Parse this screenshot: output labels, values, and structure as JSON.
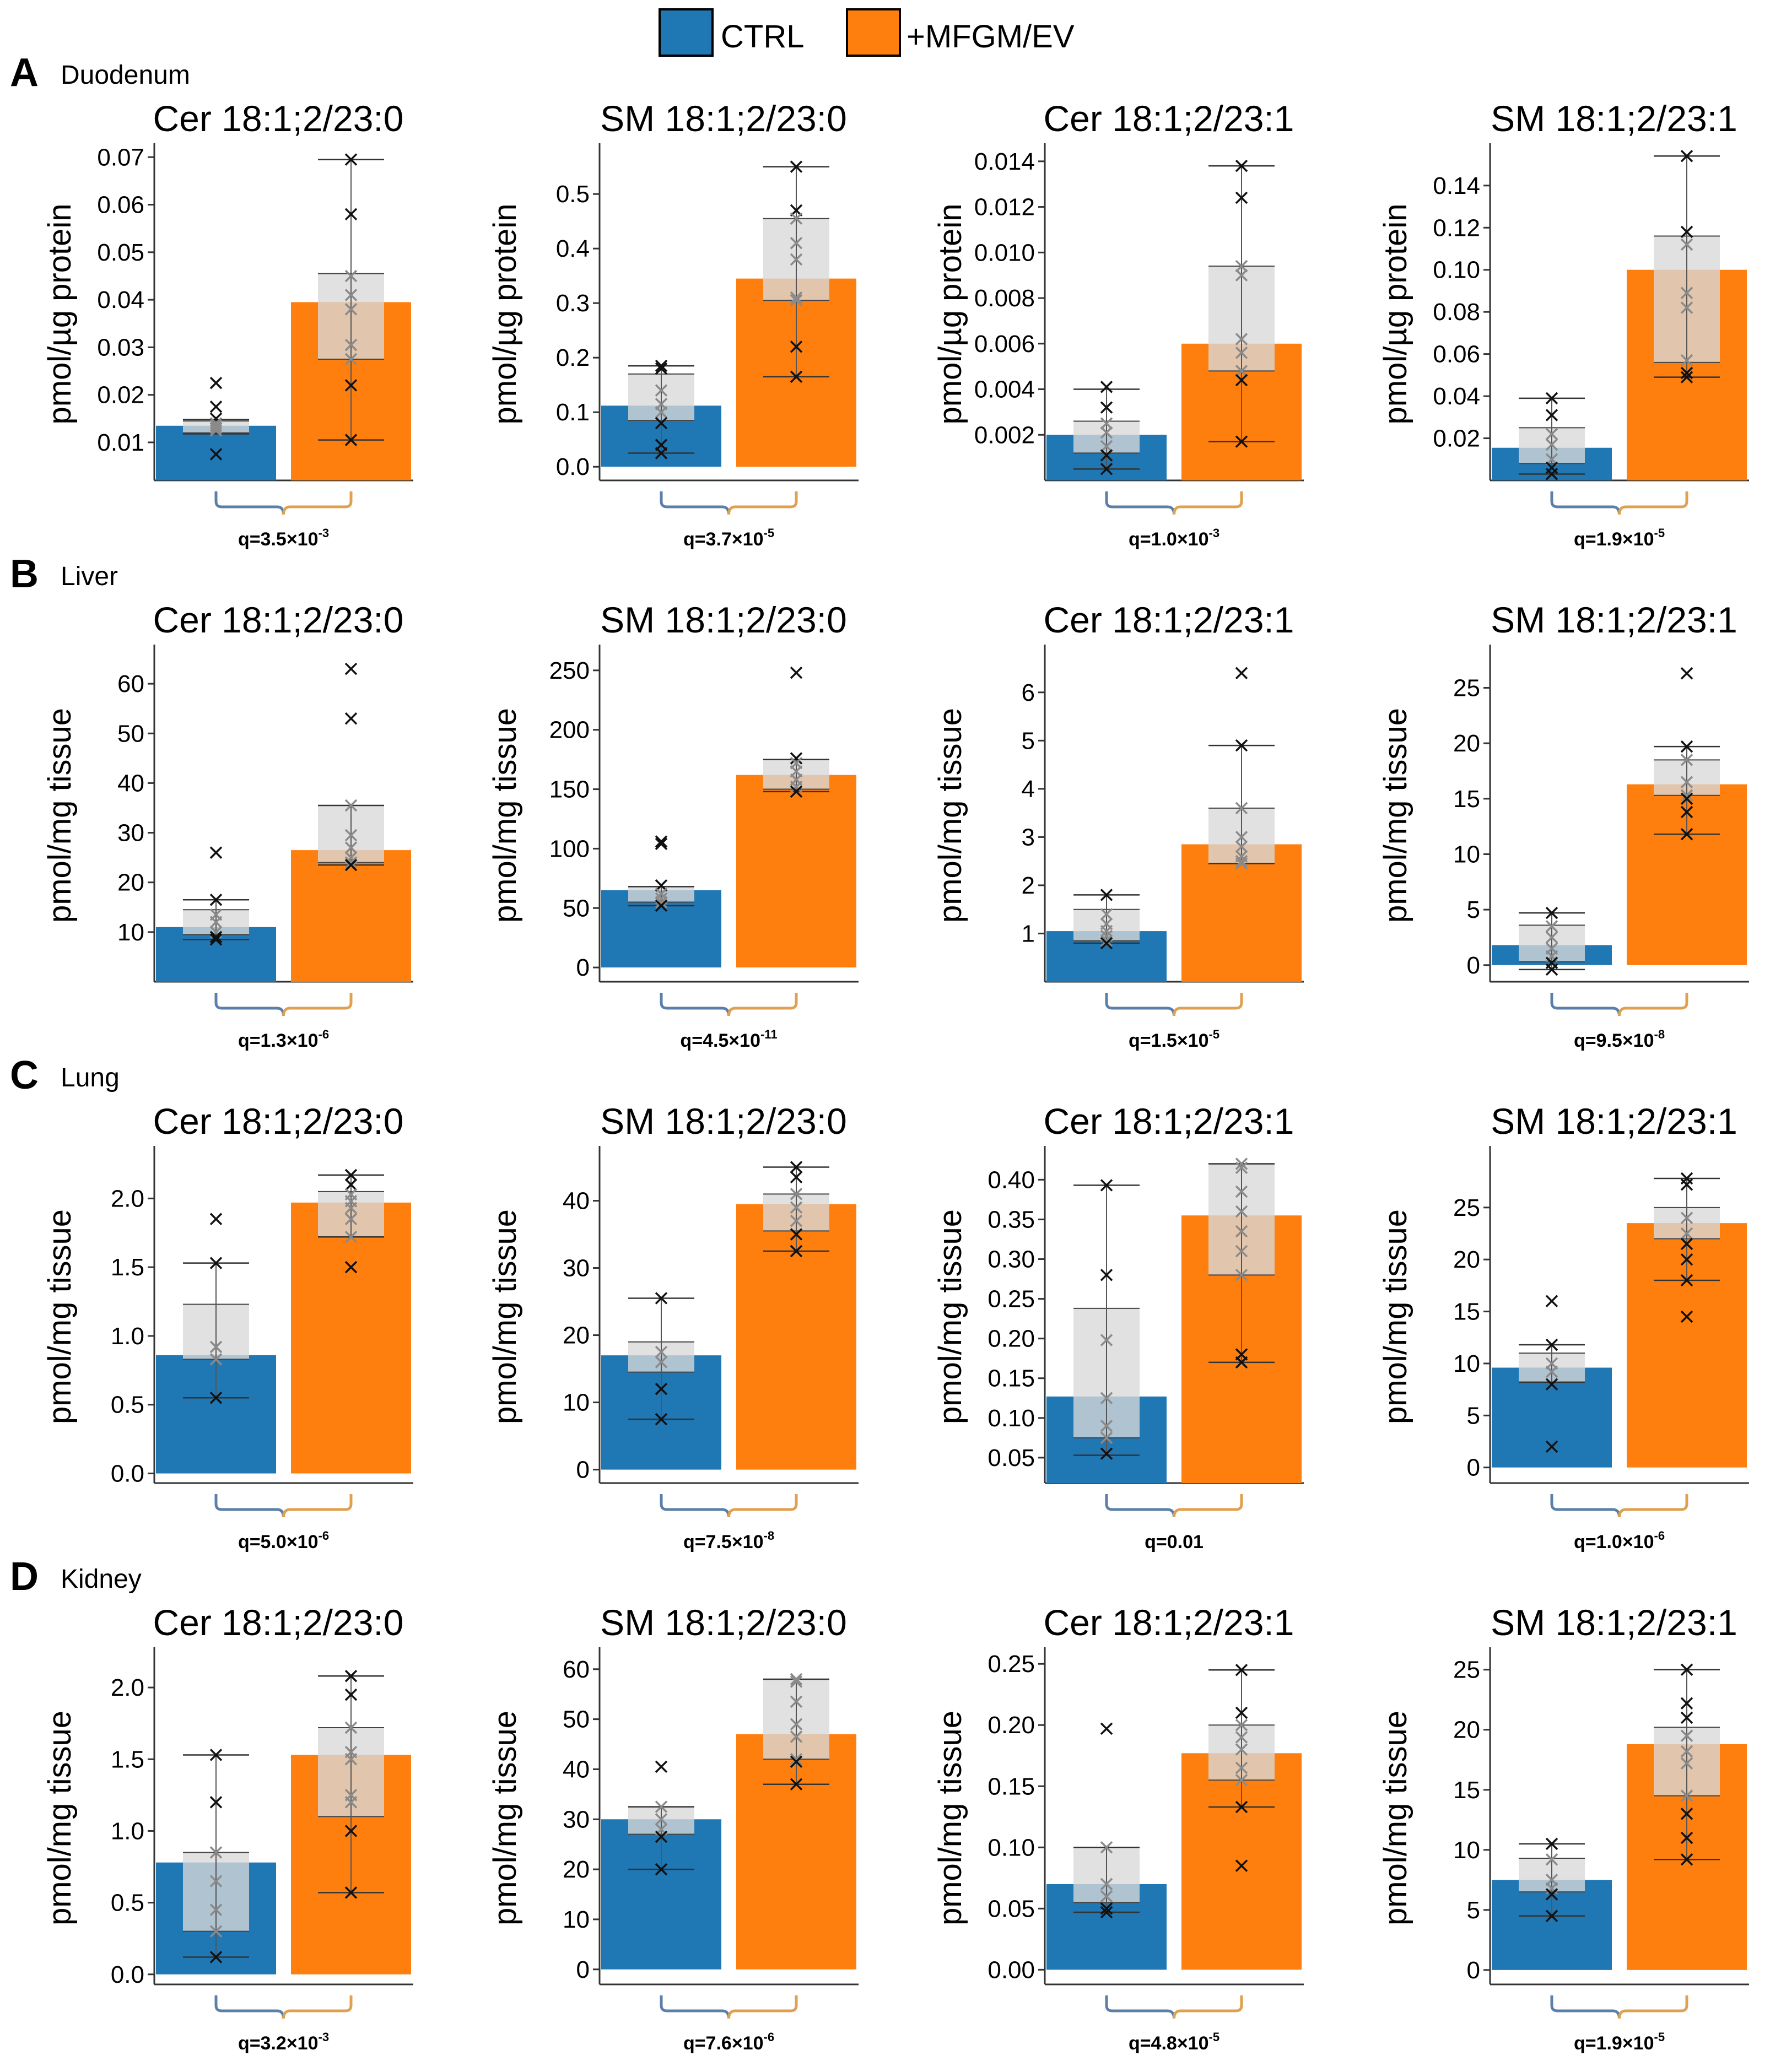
{
  "legend": {
    "ctrl_label": "CTRL",
    "treat_label": "+MFGM/EV"
  },
  "colors": {
    "ctrl": "#1f77b4",
    "treat": "#ff7f0e",
    "box": "#d9d9d9",
    "bracket_ctrl": "#5b7fa8",
    "bracket_treat": "#e0a050"
  },
  "panels": [
    {
      "letter": "A",
      "tissue": "Duodenum",
      "ylabel": "pmol/µg protein"
    },
    {
      "letter": "B",
      "tissue": "Liver",
      "ylabel": "pmol/mg tissue"
    },
    {
      "letter": "C",
      "tissue": "Lung",
      "ylabel": "pmol/mg tissue"
    },
    {
      "letter": "D",
      "tissue": "Kidney",
      "ylabel": "pmol/mg tissue"
    }
  ],
  "chart_data": [
    {
      "panel": "A",
      "title": "Cer 18:1;2/23:0",
      "type": "bar",
      "categories": [
        "CTRL",
        "+MFGM/EV"
      ],
      "ylabel": "pmol/µg protein",
      "ylim": [
        0.002,
        0.072
      ],
      "yticks": [
        0.01,
        0.02,
        0.03,
        0.04,
        0.05,
        0.06,
        0.07
      ],
      "tick_labels": [
        "0.01",
        "0.02",
        "0.03",
        "0.04",
        "0.05",
        "0.06",
        "0.07"
      ],
      "values": [
        0.0135,
        0.0395
      ],
      "box": [
        {
          "q1": 0.012,
          "q3": 0.0145,
          "wlo": 0.0118,
          "whi": 0.0148
        },
        {
          "q1": 0.0275,
          "q3": 0.0455,
          "wlo": 0.0105,
          "whi": 0.0695
        }
      ],
      "points": [
        [
          0.0225,
          0.0175,
          0.015,
          0.014,
          0.0135,
          0.013,
          0.0125,
          0.0075
        ],
        [
          0.0695,
          0.058,
          0.045,
          0.041,
          0.038,
          0.0305,
          0.0275,
          0.022,
          0.0105
        ]
      ],
      "q_base": "q=3.5×10",
      "q_exp": "-3"
    },
    {
      "panel": "A",
      "title": "SM 18:1;2/23:0",
      "type": "bar",
      "categories": [
        "CTRL",
        "+MFGM/EV"
      ],
      "ylabel": "pmol/µg protein",
      "ylim": [
        -0.025,
        0.585
      ],
      "yticks": [
        0,
        0.1,
        0.2,
        0.3,
        0.4,
        0.5
      ],
      "tick_labels": [
        "0.0",
        "0.1",
        "0.2",
        "0.3",
        "0.4",
        "0.5"
      ],
      "values": [
        0.112,
        0.345
      ],
      "box": [
        {
          "q1": 0.085,
          "q3": 0.17,
          "wlo": 0.025,
          "whi": 0.185
        },
        {
          "q1": 0.305,
          "q3": 0.455,
          "wlo": 0.165,
          "whi": 0.55
        }
      ],
      "points": [
        [
          0.185,
          0.18,
          0.14,
          0.115,
          0.1,
          0.08,
          0.04,
          0.025
        ],
        [
          0.55,
          0.47,
          0.455,
          0.41,
          0.38,
          0.31,
          0.305,
          0.22,
          0.165
        ]
      ],
      "q_base": "q=3.7×10",
      "q_exp": "-5"
    },
    {
      "panel": "A",
      "title": "Cer 18:1;2/23:1",
      "type": "bar",
      "categories": [
        "CTRL",
        "+MFGM/EV"
      ],
      "ylabel": "pmol/µg protein",
      "ylim": [
        0.0,
        0.0146
      ],
      "yticks": [
        0.002,
        0.004,
        0.006,
        0.008,
        0.01,
        0.012,
        0.014
      ],
      "tick_labels": [
        "0.002",
        "0.004",
        "0.006",
        "0.008",
        "0.010",
        "0.012",
        "0.014"
      ],
      "values": [
        0.002,
        0.006
      ],
      "box": [
        {
          "q1": 0.0012,
          "q3": 0.0026,
          "wlo": 0.0005,
          "whi": 0.004
        },
        {
          "q1": 0.0048,
          "q3": 0.0094,
          "wlo": 0.0017,
          "whi": 0.0138
        }
      ],
      "points": [
        [
          0.0041,
          0.0032,
          0.0025,
          0.0021,
          0.0015,
          0.0011,
          0.0005
        ],
        [
          0.0138,
          0.0124,
          0.0094,
          0.009,
          0.0062,
          0.0056,
          0.0048,
          0.0044,
          0.0017
        ]
      ],
      "q_base": "q=1.0×10",
      "q_exp": "-3"
    },
    {
      "panel": "A",
      "title": "SM 18:1;2/23:1",
      "type": "bar",
      "categories": [
        "CTRL",
        "+MFGM/EV"
      ],
      "ylabel": "pmol/µg protein",
      "ylim": [
        0.0,
        0.158
      ],
      "yticks": [
        0.02,
        0.04,
        0.06,
        0.08,
        0.1,
        0.12,
        0.14
      ],
      "tick_labels": [
        "0.02",
        "0.04",
        "0.06",
        "0.08",
        "0.10",
        "0.12",
        "0.14"
      ],
      "values": [
        0.0155,
        0.1
      ],
      "box": [
        {
          "q1": 0.008,
          "q3": 0.025,
          "wlo": 0.003,
          "whi": 0.039
        },
        {
          "q1": 0.056,
          "q3": 0.116,
          "wlo": 0.049,
          "whi": 0.154
        }
      ],
      "points": [
        [
          0.039,
          0.031,
          0.022,
          0.017,
          0.01,
          0.006,
          0.003
        ],
        [
          0.154,
          0.118,
          0.112,
          0.089,
          0.082,
          0.057,
          0.051,
          0.049
        ]
      ],
      "q_base": "q=1.9×10",
      "q_exp": "-5"
    },
    {
      "panel": "B",
      "title": "Cer 18:1;2/23:0",
      "type": "bar",
      "categories": [
        "CTRL",
        "+MFGM/EV"
      ],
      "ylabel": "pmol/mg tissue",
      "ylim": [
        0,
        67
      ],
      "yticks": [
        10,
        20,
        30,
        40,
        50,
        60
      ],
      "tick_labels": [
        "10",
        "20",
        "30",
        "40",
        "50",
        "60"
      ],
      "values": [
        11,
        26.5
      ],
      "box": [
        {
          "q1": 9.5,
          "q3": 14.5,
          "wlo": 8.5,
          "whi": 16.5
        },
        {
          "q1": 24,
          "q3": 35.5,
          "wlo": 23.5,
          "whi": 35.5
        }
      ],
      "points": [
        [
          26,
          16.5,
          13.5,
          12,
          10,
          9,
          8.5
        ],
        [
          63,
          53,
          35.5,
          29.5,
          27,
          25,
          24,
          23.5
        ]
      ],
      "q_base": "q=1.3×10",
      "q_exp": "-6"
    },
    {
      "panel": "B",
      "title": "SM 18:1;2/23:0",
      "type": "bar",
      "categories": [
        "CTRL",
        "+MFGM/EV"
      ],
      "ylabel": "pmol/mg tissue",
      "ylim": [
        -12,
        268
      ],
      "yticks": [
        0,
        50,
        100,
        150,
        200,
        250
      ],
      "tick_labels": [
        "0",
        "50",
        "100",
        "150",
        "200",
        "250"
      ],
      "values": [
        65,
        162
      ],
      "box": [
        {
          "q1": 55,
          "q3": 68,
          "wlo": 52,
          "whi": 68
        },
        {
          "q1": 150,
          "q3": 175,
          "wlo": 148,
          "whi": 175
        }
      ],
      "points": [
        [
          106,
          104,
          69,
          62,
          58,
          55,
          52
        ],
        [
          248,
          176,
          172,
          165,
          158,
          152,
          148
        ]
      ],
      "q_base": "q=4.5×10",
      "q_exp": "-11"
    },
    {
      "panel": "B",
      "title": "Cer 18:1;2/23:1",
      "type": "bar",
      "categories": [
        "CTRL",
        "+MFGM/EV"
      ],
      "ylabel": "pmol/mg tissue",
      "ylim": [
        0,
        6.9
      ],
      "yticks": [
        1,
        2,
        3,
        4,
        5,
        6
      ],
      "tick_labels": [
        "1",
        "2",
        "3",
        "4",
        "5",
        "6"
      ],
      "values": [
        1.05,
        2.85
      ],
      "box": [
        {
          "q1": 0.85,
          "q3": 1.5,
          "wlo": 0.8,
          "whi": 1.8
        },
        {
          "q1": 2.45,
          "q3": 3.6,
          "wlo": 2.45,
          "whi": 4.9
        }
      ],
      "points": [
        [
          1.8,
          1.4,
          1.2,
          1.05,
          0.95,
          0.85,
          0.8
        ],
        [
          6.4,
          4.9,
          3.6,
          3.0,
          2.8,
          2.6,
          2.5,
          2.45
        ]
      ],
      "q_base": "q=1.5×10",
      "q_exp": "-5"
    },
    {
      "panel": "B",
      "title": "SM 18:1;2/23:1",
      "type": "bar",
      "categories": [
        "CTRL",
        "+MFGM/EV"
      ],
      "ylabel": "pmol/mg tissue",
      "ylim": [
        -1.5,
        28.5
      ],
      "yticks": [
        0,
        5,
        10,
        15,
        20,
        25
      ],
      "tick_labels": [
        "0",
        "5",
        "10",
        "15",
        "20",
        "25"
      ],
      "values": [
        1.8,
        16.3
      ],
      "box": [
        {
          "q1": 0.3,
          "q3": 3.6,
          "wlo": -0.4,
          "whi": 4.7
        },
        {
          "q1": 15.3,
          "q3": 18.5,
          "wlo": 11.8,
          "whi": 19.7
        }
      ],
      "points": [
        [
          4.7,
          3.5,
          2.5,
          1.5,
          0.8,
          0.2,
          -0.4
        ],
        [
          26.3,
          19.7,
          18.5,
          16.5,
          15.3,
          15,
          13.8,
          11.8
        ]
      ],
      "q_base": "q=9.5×10",
      "q_exp": "-8"
    },
    {
      "panel": "C",
      "title": "Cer 18:1;2/23:0",
      "type": "bar",
      "categories": [
        "CTRL",
        "+MFGM/EV"
      ],
      "ylabel": "pmol/mg tissue",
      "ylim": [
        -0.07,
        2.35
      ],
      "yticks": [
        0.0,
        0.5,
        1.0,
        1.5,
        2.0
      ],
      "tick_labels": [
        "0.0",
        "0.5",
        "1.0",
        "1.5",
        "2.0"
      ],
      "values": [
        0.86,
        1.97
      ],
      "box": [
        {
          "q1": 0.83,
          "q3": 1.23,
          "wlo": 0.55,
          "whi": 1.53
        },
        {
          "q1": 1.72,
          "q3": 2.05,
          "wlo": 1.72,
          "whi": 2.17
        }
      ],
      "points": [
        [
          1.85,
          1.53,
          0.92,
          0.83,
          0.55
        ],
        [
          2.17,
          2.1,
          2.03,
          1.98,
          1.93,
          1.85,
          1.72,
          1.5
        ]
      ],
      "q_base": "q=5.0×10",
      "q_exp": "-6"
    },
    {
      "panel": "C",
      "title": "SM 18:1;2/23:0",
      "type": "bar",
      "categories": [
        "CTRL",
        "+MFGM/EV"
      ],
      "ylabel": "pmol/mg tissue",
      "ylim": [
        -2,
        47.5
      ],
      "yticks": [
        0,
        10,
        20,
        30,
        40
      ],
      "tick_labels": [
        "0",
        "10",
        "20",
        "30",
        "40"
      ],
      "values": [
        17,
        39.5
      ],
      "box": [
        {
          "q1": 14.5,
          "q3": 19,
          "wlo": 7.5,
          "whi": 25.5
        },
        {
          "q1": 35.5,
          "q3": 41,
          "wlo": 32.5,
          "whi": 45
        }
      ],
      "points": [
        [
          25.5,
          17.5,
          16,
          12,
          7.5
        ],
        [
          45,
          43.5,
          41,
          39,
          37,
          35,
          32.5
        ]
      ],
      "q_base": "q=7.5×10",
      "q_exp": "-8"
    },
    {
      "panel": "C",
      "title": "Cer 18:1;2/23:1",
      "type": "bar",
      "categories": [
        "CTRL",
        "+MFGM/EV"
      ],
      "ylabel": "pmol/mg tissue",
      "ylim": [
        0.018,
        0.437
      ],
      "yticks": [
        0.05,
        0.1,
        0.15,
        0.2,
        0.25,
        0.3,
        0.35,
        0.4
      ],
      "tick_labels": [
        "0.05",
        "0.10",
        "0.15",
        "0.20",
        "0.25",
        "0.30",
        "0.35",
        "0.40"
      ],
      "values": [
        0.127,
        0.355
      ],
      "box": [
        {
          "q1": 0.075,
          "q3": 0.238,
          "wlo": 0.053,
          "whi": 0.393
        },
        {
          "q1": 0.28,
          "q3": 0.42,
          "wlo": 0.17,
          "whi": 0.42
        }
      ],
      "points": [
        [
          0.393,
          0.28,
          0.198,
          0.125,
          0.09,
          0.075,
          0.055
        ],
        [
          0.42,
          0.415,
          0.385,
          0.36,
          0.335,
          0.31,
          0.28,
          0.18,
          0.17
        ]
      ],
      "q_base": "q=0.01",
      "q_exp": ""
    },
    {
      "panel": "C",
      "title": "SM 18:1;2/23:1",
      "type": "bar",
      "categories": [
        "CTRL",
        "+MFGM/EV"
      ],
      "ylabel": "pmol/mg tissue",
      "ylim": [
        -1.5,
        30.5
      ],
      "yticks": [
        0,
        5,
        10,
        15,
        20,
        25
      ],
      "tick_labels": [
        "0",
        "5",
        "10",
        "15",
        "20",
        "25"
      ],
      "values": [
        9.6,
        23.5
      ],
      "box": [
        {
          "q1": 8.2,
          "q3": 11,
          "wlo": 8.2,
          "whi": 11.8
        },
        {
          "q1": 22,
          "q3": 25,
          "wlo": 18,
          "whi": 27.8
        }
      ],
      "points": [
        [
          16,
          11.8,
          10,
          9.2,
          8,
          2
        ],
        [
          27.8,
          27.2,
          24,
          22.5,
          21.5,
          20,
          18,
          14.5
        ]
      ],
      "q_base": "q=1.0×10",
      "q_exp": "-6"
    },
    {
      "panel": "D",
      "title": "Cer 18:1;2/23:0",
      "type": "bar",
      "categories": [
        "CTRL",
        "+MFGM/EV"
      ],
      "ylabel": "pmol/mg tissue",
      "ylim": [
        -0.07,
        2.25
      ],
      "yticks": [
        0.0,
        0.5,
        1.0,
        1.5,
        2.0
      ],
      "tick_labels": [
        "0.0",
        "0.5",
        "1.0",
        "1.5",
        "2.0"
      ],
      "values": [
        0.78,
        1.53
      ],
      "box": [
        {
          "q1": 0.3,
          "q3": 0.85,
          "wlo": 0.12,
          "whi": 1.53
        },
        {
          "q1": 1.1,
          "q3": 1.72,
          "wlo": 0.57,
          "whi": 2.08
        }
      ],
      "points": [
        [
          1.53,
          1.2,
          0.85,
          0.65,
          0.45,
          0.3,
          0.12
        ],
        [
          2.08,
          1.95,
          1.72,
          1.55,
          1.5,
          1.25,
          1.2,
          1.0,
          0.57
        ]
      ],
      "q_base": "q=3.2×10",
      "q_exp": "-3"
    },
    {
      "panel": "D",
      "title": "SM 18:1;2/23:0",
      "type": "bar",
      "categories": [
        "CTRL",
        "+MFGM/EV"
      ],
      "ylabel": "pmol/mg tissue",
      "ylim": [
        -3,
        63.5
      ],
      "yticks": [
        0,
        10,
        20,
        30,
        40,
        50,
        60
      ],
      "tick_labels": [
        "0",
        "10",
        "20",
        "30",
        "40",
        "50",
        "60"
      ],
      "values": [
        30,
        47
      ],
      "box": [
        {
          "q1": 27,
          "q3": 32.5,
          "wlo": 20,
          "whi": 32.5
        },
        {
          "q1": 42,
          "q3": 58,
          "wlo": 37,
          "whi": 58
        }
      ],
      "points": [
        [
          40.5,
          32.5,
          30,
          28,
          26.5,
          20
        ],
        [
          58,
          57.5,
          53.5,
          49,
          46.5,
          42,
          41.5,
          37
        ]
      ],
      "q_base": "q=7.6×10",
      "q_exp": "-6"
    },
    {
      "panel": "D",
      "title": "Cer 18:1;2/23:1",
      "type": "bar",
      "categories": [
        "CTRL",
        "+MFGM/EV"
      ],
      "ylabel": "pmol/mg tissue",
      "ylim": [
        -0.012,
        0.26
      ],
      "yticks": [
        0.0,
        0.05,
        0.1,
        0.15,
        0.2,
        0.25
      ],
      "tick_labels": [
        "0.00",
        "0.05",
        "0.10",
        "0.15",
        "0.20",
        "0.25"
      ],
      "values": [
        0.07,
        0.177
      ],
      "box": [
        {
          "q1": 0.055,
          "q3": 0.1,
          "wlo": 0.047,
          "whi": 0.1
        },
        {
          "q1": 0.155,
          "q3": 0.2,
          "wlo": 0.133,
          "whi": 0.245
        }
      ],
      "points": [
        [
          0.197,
          0.1,
          0.07,
          0.06,
          0.05,
          0.047
        ],
        [
          0.245,
          0.21,
          0.2,
          0.19,
          0.18,
          0.165,
          0.155,
          0.133,
          0.085
        ]
      ],
      "q_base": "q=4.8×10",
      "q_exp": "-5"
    },
    {
      "panel": "D",
      "title": "SM 18:1;2/23:1",
      "type": "bar",
      "categories": [
        "CTRL",
        "+MFGM/EV"
      ],
      "ylabel": "pmol/mg tissue",
      "ylim": [
        -1.2,
        26.5
      ],
      "yticks": [
        0,
        5,
        10,
        15,
        20,
        25
      ],
      "tick_labels": [
        "0",
        "5",
        "10",
        "15",
        "20",
        "25"
      ],
      "values": [
        7.5,
        18.8
      ],
      "box": [
        {
          "q1": 6.5,
          "q3": 9.3,
          "wlo": 4.5,
          "whi": 10.5
        },
        {
          "q1": 14.5,
          "q3": 20.2,
          "wlo": 9.2,
          "whi": 25
        }
      ],
      "points": [
        [
          10.5,
          9.2,
          7.5,
          6.8,
          6.3,
          4.5
        ],
        [
          25,
          22.2,
          21,
          19.5,
          18.2,
          17.2,
          14.5,
          13,
          11,
          9.2
        ]
      ],
      "q_base": "q=1.9×10",
      "q_exp": "-5"
    }
  ]
}
